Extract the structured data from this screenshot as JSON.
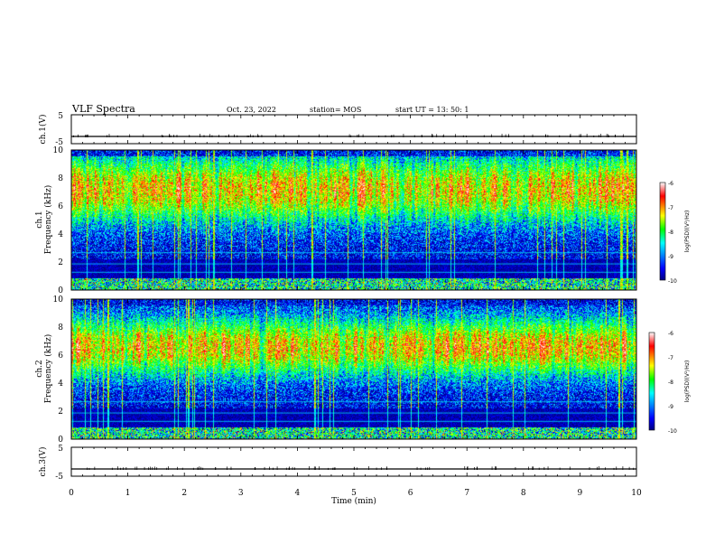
{
  "header": {
    "title": "VLF Spectra",
    "date": "Oct. 23, 2022",
    "station": "station= MOS",
    "start": "start  UT  =   13: 50: 1"
  },
  "chart_data": [
    {
      "type": "line",
      "panel": "ch1-waveform",
      "ylabel": "ch.1(V)",
      "yticks": [
        "5",
        "-5"
      ],
      "ylim": [
        -5,
        5
      ],
      "xlim": [
        0,
        10
      ],
      "baseline": -2.5
    },
    {
      "type": "heatmap",
      "panel": "ch1-spectrogram",
      "ylabel": "ch.1",
      "ylabel2": "Frequency (kHz)",
      "yticks": [
        "0",
        "2",
        "4",
        "6",
        "8",
        "10"
      ],
      "ylim": [
        0,
        10
      ],
      "xlim": [
        0,
        10
      ],
      "colorbar": {
        "label": "log(PSD)(V²/Hz)",
        "ticks": [
          "-6",
          "-7",
          "-8",
          "-9",
          "-10"
        ],
        "range": [
          -10,
          -6
        ],
        "colors": [
          "#000080",
          "#0000ff",
          "#00ffff",
          "#00ff00",
          "#ffff00",
          "#ff0000",
          "#ffffff"
        ]
      }
    },
    {
      "type": "heatmap",
      "panel": "ch2-spectrogram",
      "ylabel": "ch.2",
      "ylabel2": "Frequency (kHz)",
      "yticks": [
        "0",
        "2",
        "4",
        "6",
        "8",
        "10"
      ],
      "ylim": [
        0,
        10
      ],
      "xlim": [
        0,
        10
      ],
      "colorbar": {
        "label": "log(PSD)(V²/Hz)",
        "ticks": [
          "-6",
          "-7",
          "-8",
          "-9",
          "-10"
        ],
        "range": [
          -10,
          -6
        ],
        "colors": [
          "#000080",
          "#0000ff",
          "#00ffff",
          "#00ff00",
          "#ffff00",
          "#ff0000",
          "#ffffff"
        ]
      }
    },
    {
      "type": "line",
      "panel": "ch3-waveform",
      "ylabel": "ch.3(V)",
      "yticks": [
        "5",
        "-5"
      ],
      "ylim": [
        -5,
        5
      ],
      "xlim": [
        0,
        10
      ],
      "baseline": -2.5
    }
  ],
  "xaxis": {
    "label": "Time (min)",
    "ticks": [
      "0",
      "1",
      "2",
      "3",
      "4",
      "5",
      "6",
      "7",
      "8",
      "9",
      "10"
    ]
  }
}
